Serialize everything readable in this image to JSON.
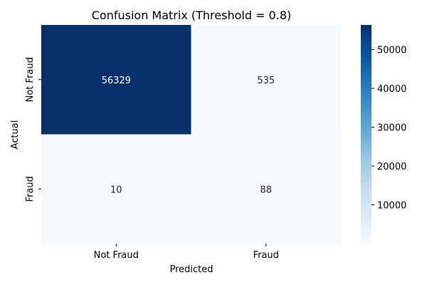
{
  "chart_data": {
    "type": "heatmap",
    "title": "Confusion Matrix (Threshold = 0.8)",
    "xlabel": "Predicted",
    "ylabel": "Actual",
    "x_categories": [
      "Not Fraud",
      "Fraud"
    ],
    "y_categories": [
      "Not Fraud",
      "Fraud"
    ],
    "values": [
      [
        56329,
        535
      ],
      [
        10,
        88
      ]
    ],
    "colormap": "Blues",
    "colors": {
      "low": "#f7fbff",
      "high": "#08306b",
      "text_light": "#ffffff",
      "text_dark": "#262626"
    },
    "colorbar": {
      "ticks": [
        10000,
        20000,
        30000,
        40000,
        50000
      ],
      "tick_labels": [
        "10000",
        "20000",
        "30000",
        "40000",
        "50000"
      ],
      "range": [
        10,
        56329
      ]
    }
  }
}
